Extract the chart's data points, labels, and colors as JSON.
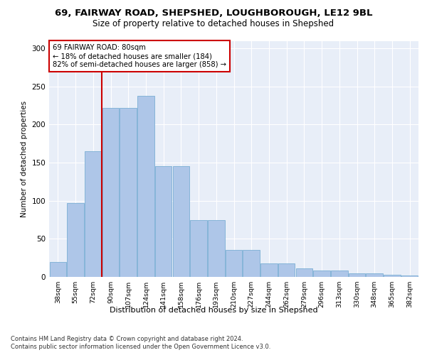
{
  "title1": "69, FAIRWAY ROAD, SHEPSHED, LOUGHBOROUGH, LE12 9BL",
  "title2": "Size of property relative to detached houses in Shepshed",
  "xlabel": "Distribution of detached houses by size in Shepshed",
  "ylabel": "Number of detached properties",
  "categories": [
    "38sqm",
    "55sqm",
    "72sqm",
    "90sqm",
    "107sqm",
    "124sqm",
    "141sqm",
    "158sqm",
    "176sqm",
    "193sqm",
    "210sqm",
    "227sqm",
    "244sqm",
    "262sqm",
    "279sqm",
    "296sqm",
    "313sqm",
    "330sqm",
    "348sqm",
    "365sqm",
    "382sqm"
  ],
  "values": [
    20,
    97,
    165,
    222,
    222,
    238,
    145,
    145,
    75,
    75,
    35,
    35,
    18,
    18,
    11,
    8,
    8,
    5,
    5,
    3,
    2
  ],
  "bar_color": "#aec6e8",
  "bar_edge_color": "#7aaed4",
  "annotation_title": "69 FAIRWAY ROAD: 80sqm",
  "annotation_line1": "← 18% of detached houses are smaller (184)",
  "annotation_line2": "82% of semi-detached houses are larger (858) →",
  "annotation_box_color": "#ffffff",
  "annotation_box_edge": "#cc0000",
  "vline_color": "#cc0000",
  "vline_x": 2.5,
  "ylim": [
    0,
    310
  ],
  "yticks": [
    0,
    50,
    100,
    150,
    200,
    250,
    300
  ],
  "bg_color": "#e8eef8",
  "footer1": "Contains HM Land Registry data © Crown copyright and database right 2024.",
  "footer2": "Contains public sector information licensed under the Open Government Licence v3.0."
}
